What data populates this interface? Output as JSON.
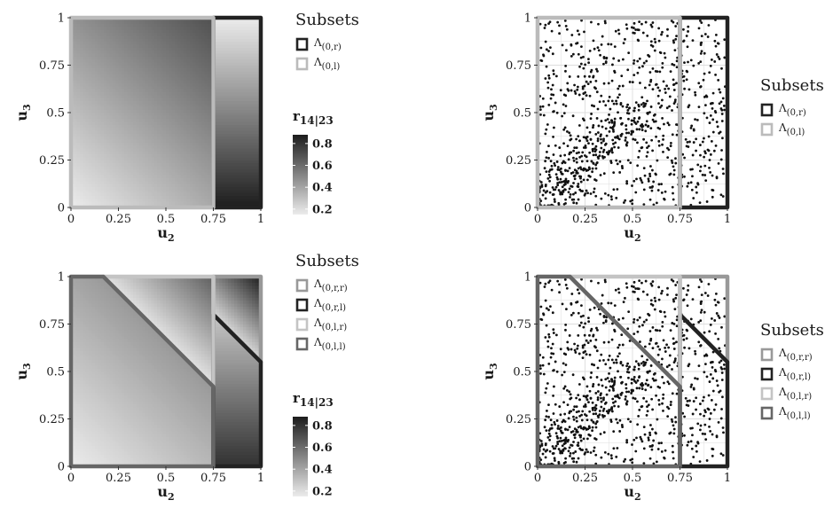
{
  "chart_data": [
    {
      "id": "top-left",
      "type": "heatmap",
      "xlabel": "u2",
      "ylabel": "u3",
      "xlim": [
        0,
        1
      ],
      "ylim": [
        0,
        1
      ],
      "xticks": [
        "0",
        "0.25",
        "0.5",
        "0.75",
        "1"
      ],
      "yticks": [
        "0",
        "0.25",
        "0.5",
        "0.75",
        "1"
      ],
      "grid": true,
      "fill": {
        "variable": "r14|23",
        "range": [
          0.15,
          0.88
        ],
        "regions": [
          {
            "subset": "Λ(0,l)",
            "formula": "0.15 + 0.55*(u2+u3)/1.75"
          },
          {
            "subset": "Λ(0,r)",
            "formula": "0.15 + 0.73*(1-u3)"
          }
        ]
      },
      "subsets": [
        {
          "name": "Λ(0,r)",
          "color": "#222222",
          "polygon": [
            [
              0.75,
              0
            ],
            [
              1,
              0
            ],
            [
              1,
              1
            ],
            [
              0.75,
              1
            ]
          ]
        },
        {
          "name": "Λ(0,l)",
          "color": "#bbbbbb",
          "polygon": [
            [
              0,
              0
            ],
            [
              0.75,
              0
            ],
            [
              0.75,
              1
            ],
            [
              0,
              1
            ]
          ]
        }
      ],
      "legend": {
        "title": "Subsets",
        "items": [
          {
            "label": "Λ(0,r)",
            "base": "Λ",
            "sub": "(0,r)",
            "color": "#222222"
          },
          {
            "label": "Λ(0,l)",
            "base": "Λ",
            "sub": "(0,l)",
            "color": "#bbbbbb"
          }
        ],
        "placement": "right"
      },
      "colorbar": {
        "title": "r14|23",
        "title_base": "r",
        "title_sub": "14|23",
        "ticks": [
          "0.8",
          "0.6",
          "0.4",
          "0.2"
        ],
        "tick_values": [
          0.8,
          0.6,
          0.4,
          0.2
        ],
        "range": [
          0.15,
          0.88
        ],
        "colors": [
          "#ececec",
          "#1c1c1c"
        ]
      }
    },
    {
      "id": "top-right",
      "type": "scatter",
      "xlabel": "u2",
      "ylabel": "u3",
      "xlim": [
        0,
        1
      ],
      "ylim": [
        0,
        1
      ],
      "xticks": [
        "0",
        "0.25",
        "0.5",
        "0.75",
        "1"
      ],
      "yticks": [
        "0",
        "0.25",
        "0.5",
        "0.75",
        "1"
      ],
      "grid": true,
      "points": {
        "n": 1000,
        "seed": 7,
        "dependence": "positive in Λ(0,l) near origin, uniform otherwise"
      },
      "subsets": [
        {
          "name": "Λ(0,r)",
          "color": "#222222",
          "polygon": [
            [
              0.75,
              0
            ],
            [
              1,
              0
            ],
            [
              1,
              1
            ],
            [
              0.75,
              1
            ]
          ]
        },
        {
          "name": "Λ(0,l)",
          "color": "#bbbbbb",
          "polygon": [
            [
              0,
              0
            ],
            [
              0.75,
              0
            ],
            [
              0.75,
              1
            ],
            [
              0,
              1
            ]
          ]
        }
      ],
      "legend": {
        "title": "Subsets",
        "items": [
          {
            "label": "Λ(0,r)",
            "base": "Λ",
            "sub": "(0,r)",
            "color": "#222222"
          },
          {
            "label": "Λ(0,l)",
            "base": "Λ",
            "sub": "(0,l)",
            "color": "#bbbbbb"
          }
        ],
        "placement": "right"
      }
    },
    {
      "id": "bottom-left",
      "type": "heatmap",
      "xlabel": "u2",
      "ylabel": "u3",
      "xlim": [
        0,
        1
      ],
      "ylim": [
        0,
        1
      ],
      "xticks": [
        "0",
        "0.25",
        "0.5",
        "0.75",
        "1"
      ],
      "yticks": [
        "0",
        "0.25",
        "0.5",
        "0.75",
        "1"
      ],
      "grid": true,
      "fill": {
        "variable": "r14|23",
        "range": [
          0.15,
          0.88
        ],
        "regions": [
          {
            "subset": "Λ(0,l,l)",
            "formula": "0.15 + 0.25*(u2+u3)"
          },
          {
            "subset": "Λ(0,l,r)",
            "formula": "0.15 + 0.73*((u2+u3)-1.17)/0.83"
          },
          {
            "subset": "Λ(0,r,l)",
            "formula": "0.15 + 0.65*(1-u3)"
          },
          {
            "subset": "Λ(0,r,r)",
            "formula": "0.15 + 0.73*((u2+u3)-1.55)/0.45"
          }
        ]
      },
      "subsets": [
        {
          "name": "Λ(0,r,r)",
          "color": "#999999",
          "polygon": [
            [
              0.75,
              0.8
            ],
            [
              1,
              0.55
            ],
            [
              1,
              1
            ],
            [
              0.75,
              1
            ]
          ]
        },
        {
          "name": "Λ(0,r,l)",
          "color": "#222222",
          "polygon": [
            [
              0.75,
              0
            ],
            [
              1,
              0
            ],
            [
              1,
              0.55
            ],
            [
              0.75,
              0.8
            ]
          ]
        },
        {
          "name": "Λ(0,l,r)",
          "color": "#c4c4c4",
          "polygon": [
            [
              0.17,
              1
            ],
            [
              0.75,
              0.42
            ],
            [
              0.75,
              1
            ]
          ]
        },
        {
          "name": "Λ(0,l,l)",
          "color": "#666666",
          "polygon": [
            [
              0,
              0
            ],
            [
              0.75,
              0
            ],
            [
              0.75,
              0.42
            ],
            [
              0.17,
              1
            ],
            [
              0,
              1
            ]
          ]
        }
      ],
      "legend": {
        "title": "Subsets",
        "items": [
          {
            "label": "Λ(0,r,r)",
            "base": "Λ",
            "sub": "(0,r,r)",
            "color": "#999999"
          },
          {
            "label": "Λ(0,r,l)",
            "base": "Λ",
            "sub": "(0,r,l)",
            "color": "#222222"
          },
          {
            "label": "Λ(0,l,r)",
            "base": "Λ",
            "sub": "(0,l,r)",
            "color": "#c4c4c4"
          },
          {
            "label": "Λ(0,l,l)",
            "base": "Λ",
            "sub": "(0,l,l)",
            "color": "#666666"
          }
        ],
        "placement": "right"
      },
      "colorbar": {
        "title": "r14|23",
        "title_base": "r",
        "title_sub": "14|23",
        "ticks": [
          "0.8",
          "0.6",
          "0.4",
          "0.2"
        ],
        "tick_values": [
          0.8,
          0.6,
          0.4,
          0.2
        ],
        "range": [
          0.15,
          0.88
        ],
        "colors": [
          "#ececec",
          "#1c1c1c"
        ]
      }
    },
    {
      "id": "bottom-right",
      "type": "scatter",
      "xlabel": "u2",
      "ylabel": "u3",
      "xlim": [
        0,
        1
      ],
      "ylim": [
        0,
        1
      ],
      "xticks": [
        "0",
        "0.25",
        "0.5",
        "0.75",
        "1"
      ],
      "yticks": [
        "0",
        "0.25",
        "0.5",
        "0.75",
        "1"
      ],
      "grid": true,
      "points": {
        "n": 1000,
        "seed": 7,
        "dependence": "positive in Λ(0,l) near origin, uniform otherwise"
      },
      "subsets": [
        {
          "name": "Λ(0,r,r)",
          "color": "#999999",
          "polygon": [
            [
              0.75,
              0.8
            ],
            [
              1,
              0.55
            ],
            [
              1,
              1
            ],
            [
              0.75,
              1
            ]
          ]
        },
        {
          "name": "Λ(0,r,l)",
          "color": "#222222",
          "polygon": [
            [
              0.75,
              0
            ],
            [
              1,
              0
            ],
            [
              1,
              0.55
            ],
            [
              0.75,
              0.8
            ]
          ]
        },
        {
          "name": "Λ(0,l,r)",
          "color": "#c4c4c4",
          "polygon": [
            [
              0.17,
              1
            ],
            [
              0.75,
              0.42
            ],
            [
              0.75,
              1
            ]
          ]
        },
        {
          "name": "Λ(0,l,l)",
          "color": "#666666",
          "polygon": [
            [
              0,
              0
            ],
            [
              0.75,
              0
            ],
            [
              0.75,
              0.42
            ],
            [
              0.17,
              1
            ],
            [
              0,
              1
            ]
          ]
        }
      ],
      "legend": {
        "title": "Subsets",
        "items": [
          {
            "label": "Λ(0,r,r)",
            "base": "Λ",
            "sub": "(0,r,r)",
            "color": "#999999"
          },
          {
            "label": "Λ(0,r,l)",
            "base": "Λ",
            "sub": "(0,r,l)",
            "color": "#222222"
          },
          {
            "label": "Λ(0,l,r)",
            "base": "Λ",
            "sub": "(0,l,r)",
            "color": "#c4c4c4"
          },
          {
            "label": "Λ(0,l,l)",
            "base": "Λ",
            "sub": "(0,l,l)",
            "color": "#666666"
          }
        ],
        "placement": "right"
      }
    }
  ]
}
